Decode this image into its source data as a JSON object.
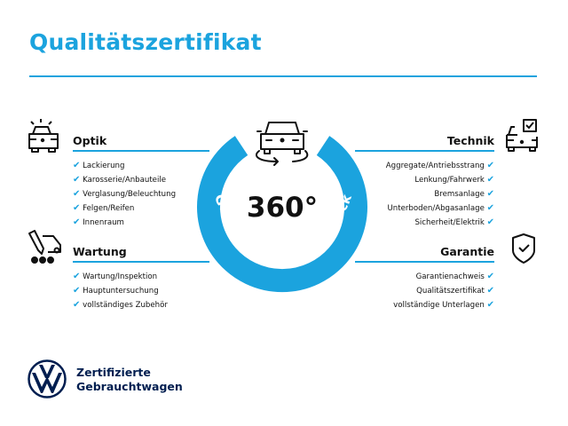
{
  "title": "Qualitätszertifikat",
  "accent_color": "#1ba3de",
  "brand_color": "#001e50",
  "center": {
    "big_text": "360°",
    "ring_text": "Gebrauchtwagen-Check",
    "icon": "car-rotate-icon"
  },
  "sections": {
    "optik": {
      "heading": "Optik",
      "icon": "car-lights-icon",
      "items": [
        "Lackierung",
        "Karosserie/Anbauteile",
        "Verglasung/Beleuchtung",
        "Felgen/Reifen",
        "Innenraum"
      ]
    },
    "wartung": {
      "heading": "Wartung",
      "icon": "service-truck-icon",
      "items": [
        "Wartung/Inspektion",
        "Hauptuntersuchung",
        "vollständiges Zubehör"
      ]
    },
    "technik": {
      "heading": "Technik",
      "icon": "car-checklist-icon",
      "items": [
        "Aggregate/Antriebsstrang",
        "Lenkung/Fahrwerk",
        "Bremsanlage",
        "Unterboden/Abgasanlage",
        "Sicherheit/Elektrik"
      ]
    },
    "garantie": {
      "heading": "Garantie",
      "icon": "shield-check-icon",
      "items": [
        "Garantienachweis",
        "Qualitätszertifikat",
        "vollständige Unterlagen"
      ]
    }
  },
  "check_glyph": "✔",
  "brand": {
    "line1": "Zertifizierte",
    "line2": "Gebrauchtwagen",
    "logo": "VW"
  }
}
